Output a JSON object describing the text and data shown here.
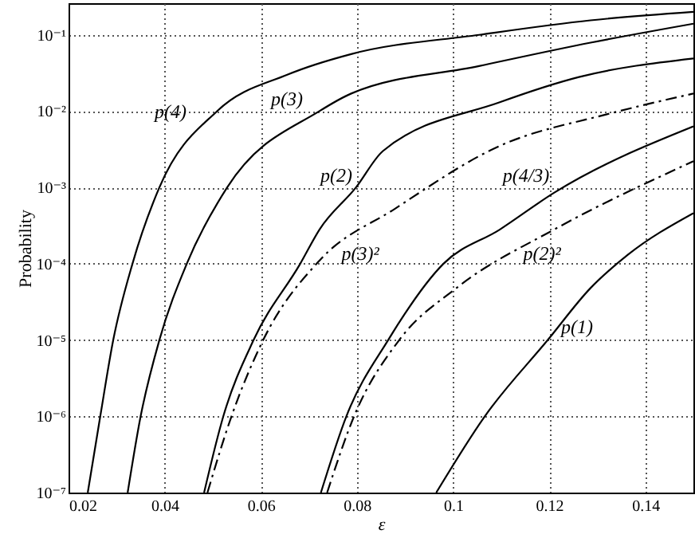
{
  "chart_data": {
    "type": "line",
    "xlabel": "ε",
    "ylabel": "Probability",
    "log": "y",
    "grid": true,
    "legend": false,
    "xlim": [
      0.02,
      0.15
    ],
    "xticks": [
      0.02,
      0.04,
      0.06,
      0.08,
      0.1,
      0.12,
      0.14
    ],
    "ylim": [
      1e-07,
      0.26
    ],
    "yticks": [
      {
        "value": 1e-07,
        "label": "10⁻⁷"
      },
      {
        "value": 1e-06,
        "label": "10⁻⁶"
      },
      {
        "value": 1e-05,
        "label": "10⁻⁵"
      },
      {
        "value": 0.0001,
        "label": "10⁻⁴"
      },
      {
        "value": 0.001,
        "label": "10⁻³"
      },
      {
        "value": 0.01,
        "label": "10⁻²"
      },
      {
        "value": 0.1,
        "label": "10⁻¹"
      }
    ],
    "series": [
      {
        "name": "p(4)",
        "color": "#000000",
        "line_style": "solid",
        "x": [
          0.024,
          0.0266,
          0.0293,
          0.0333,
          0.0389,
          0.0509,
          0.0655,
          0.0788,
          0.1054,
          0.1286,
          0.15
        ],
        "values": [
          1e-07,
          1e-06,
          1e-05,
          0.0001,
          0.001,
          0.01,
          0.03,
          0.056,
          0.1,
          0.155,
          0.2
        ]
      },
      {
        "name": "p(3)",
        "color": "#000000",
        "line_style": "solid",
        "x": [
          0.0323,
          0.035,
          0.0389,
          0.0446,
          0.053,
          0.0722,
          0.0788,
          0.1054,
          0.1286,
          0.15
        ],
        "values": [
          1e-07,
          1e-06,
          1e-05,
          0.0001,
          0.001,
          0.01,
          0.017,
          0.039,
          0.079,
          0.14
        ]
      },
      {
        "name": "p(2)",
        "color": "#000000",
        "line_style": "solid",
        "x": [
          0.0482,
          0.0522,
          0.0585,
          0.0682,
          0.0722,
          0.0798,
          0.0854,
          0.1096,
          0.1262,
          0.15
        ],
        "values": [
          1e-07,
          1e-06,
          1e-05,
          0.0001,
          0.00028,
          0.001,
          0.003,
          0.013,
          0.028,
          0.049
        ]
      },
      {
        "name": "p(3)²",
        "color": "#000000",
        "line_style": "dashed",
        "x": [
          0.0489,
          0.0539,
          0.0605,
          0.0722,
          0.0878,
          0.1097,
          0.132,
          0.15
        ],
        "values": [
          1e-07,
          1e-06,
          1e-05,
          0.00011,
          0.00052,
          0.0035,
          0.0091,
          0.017
        ]
      },
      {
        "name": "p(4/3)",
        "color": "#000000",
        "line_style": "solid",
        "x": [
          0.0725,
          0.0778,
          0.0865,
          0.098,
          0.1097,
          0.121,
          0.15
        ],
        "values": [
          1e-07,
          1e-06,
          1e-05,
          0.0001,
          0.00028,
          0.00085,
          0.0063
        ]
      },
      {
        "name": "p(2)²",
        "color": "#000000",
        "line_style": "dashed",
        "x": [
          0.0738,
          0.0794,
          0.0888,
          0.1007,
          0.121,
          0.15
        ],
        "values": [
          1e-07,
          1e-06,
          1e-05,
          4.8e-05,
          0.00028,
          0.0022
        ]
      },
      {
        "name": "p(1)",
        "color": "#000000",
        "line_style": "solid",
        "x": [
          0.0965,
          0.1066,
          0.1197,
          0.1286,
          0.1363,
          0.15
        ],
        "values": [
          1e-07,
          1e-06,
          1e-05,
          4.8e-05,
          0.00013,
          0.00046
        ]
      }
    ]
  }
}
